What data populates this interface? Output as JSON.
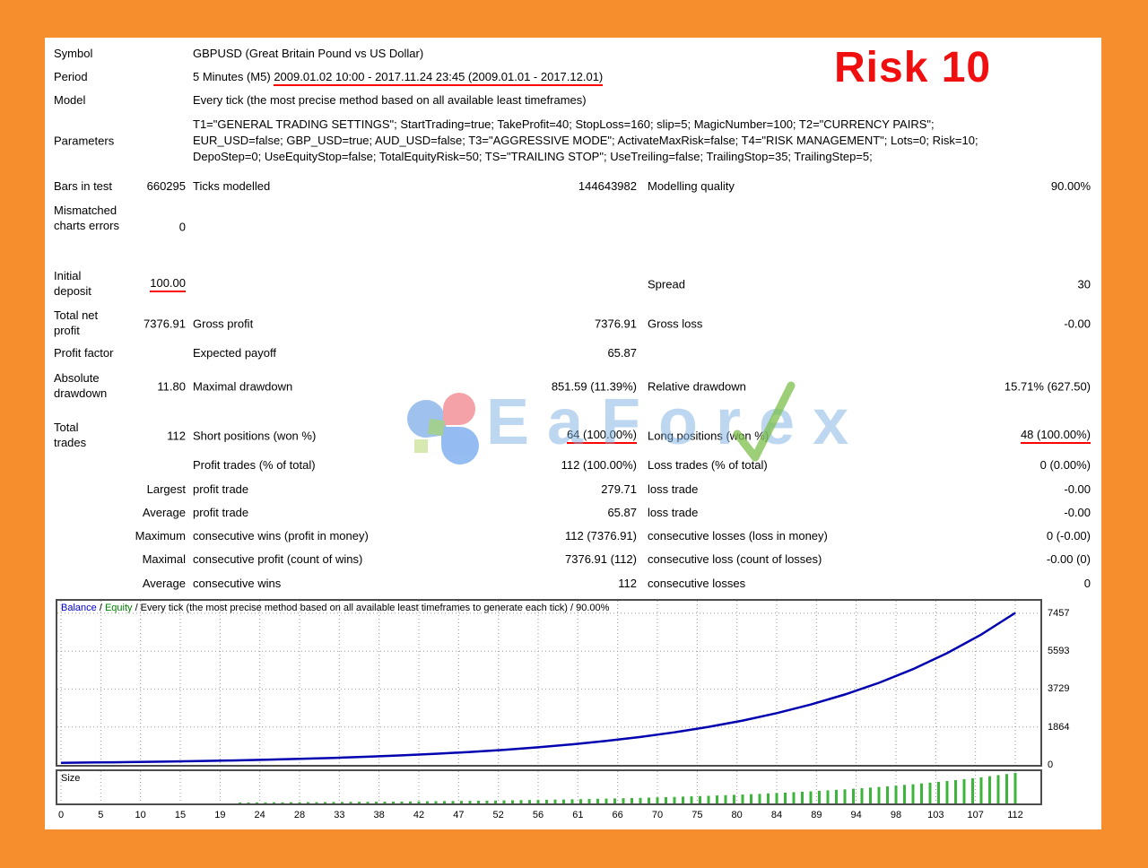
{
  "annotation": {
    "risk_label": "Risk 10"
  },
  "watermark": {
    "brand": "EaForex"
  },
  "report": {
    "symbol": {
      "label": "Symbol",
      "value": "GBPUSD (Great Britain Pound vs US Dollar)"
    },
    "period": {
      "label": "Period",
      "prefix": "5 Minutes (M5) ",
      "underlined": "2009.01.02 10:00 - 2017.11.24 23:45 (2009.01.01 - 2017.12.01)"
    },
    "model": {
      "label": "Model",
      "value": "Every tick (the most precise method based on all available least timeframes)"
    },
    "parameters": {
      "label": "Parameters",
      "lines": [
        "T1=\"GENERAL TRADING SETTINGS\"; StartTrading=true; TakeProfit=40; StopLoss=160; slip=5; MagicNumber=100; T2=\"CURRENCY PAIRS\";",
        "EUR_USD=false; GBP_USD=true; AUD_USD=false; T3=\"AGGRESSIVE MODE\"; ActivateMaxRisk=false; T4=\"RISK MANAGEMENT\"; Lots=0; Risk=10;",
        "DepoStep=0; UseEquityStop=false; TotalEquityRisk=50; TS=\"TRAILING STOP\"; UseTreiling=false; TrailingStop=35; TrailingStep=5;"
      ]
    },
    "bars": {
      "label": "Bars in test",
      "value": "660295",
      "l2": "Ticks modelled",
      "v2": "144643982",
      "l3": "Modelling quality",
      "v3": "90.00%"
    },
    "mismatched": {
      "label": "Mismatched charts errors",
      "value": "0"
    },
    "initial_deposit": {
      "label": "Initial deposit",
      "value": "100.00",
      "l3": "Spread",
      "v3": "30"
    },
    "total_net_profit": {
      "label": "Total net profit",
      "value": "7376.91",
      "l2": "Gross profit",
      "v2": "7376.91",
      "l3": "Gross loss",
      "v3": "-0.00"
    },
    "profit_factor": {
      "label": "Profit factor",
      "l2": "Expected payoff",
      "v2": "65.87"
    },
    "absolute_drawdown": {
      "label": "Absolute drawdown",
      "value": "11.80",
      "l2": "Maximal drawdown",
      "v2": "851.59 (11.39%)",
      "l3": "Relative drawdown",
      "v3": "15.71% (627.50)"
    },
    "total_trades": {
      "label": "Total trades",
      "value": "112",
      "l2": "Short positions (won %)",
      "v2": "64 (100.00%)",
      "l3": "Long positions (won %)",
      "v3": "48 (100.00%)"
    },
    "profit_trades": {
      "l2": "Profit trades (% of total)",
      "v2": "112 (100.00%)",
      "l3": "Loss trades (% of total)",
      "v3": "0 (0.00%)"
    },
    "largest": {
      "label": "Largest",
      "l2": "profit trade",
      "v2": "279.71",
      "l3": "loss trade",
      "v3": "-0.00"
    },
    "average_trade": {
      "label": "Average",
      "l2": "profit trade",
      "v2": "65.87",
      "l3": "loss trade",
      "v3": "-0.00"
    },
    "maximum": {
      "label": "Maximum",
      "l2": "consecutive wins (profit in money)",
      "v2": "112 (7376.91)",
      "l3": "consecutive losses (loss in money)",
      "v3": "0 (-0.00)"
    },
    "maximal": {
      "label": "Maximal",
      "l2": "consecutive profit (count of wins)",
      "v2": "7376.91 (112)",
      "l3": "consecutive loss (count of losses)",
      "v3": "-0.00 (0)"
    },
    "average_cons": {
      "label": "Average",
      "l2": "consecutive wins",
      "v2": "112",
      "l3": "consecutive losses",
      "v3": "0"
    }
  },
  "chart_data": {
    "type": "line",
    "header": {
      "balance_label": "Balance",
      "sep1": " / ",
      "equity_label": "Equity",
      "rest": " / Every tick (the most precise method based on all available least timeframes to generate each tick) / 90.00%"
    },
    "line_color": "#0000b0",
    "balance_label_color": "#0000cc",
    "equity_label_color": "#008000",
    "x": [
      0,
      4,
      8,
      12,
      16,
      20,
      24,
      28,
      32,
      36,
      40,
      44,
      48,
      52,
      56,
      60,
      64,
      68,
      72,
      76,
      80,
      84,
      88,
      92,
      96,
      100,
      104,
      108,
      112
    ],
    "series": [
      {
        "name": "Balance",
        "values": [
          100,
          117,
          136,
          159,
          185,
          216,
          252,
          294,
          343,
          400,
          467,
          545,
          635,
          741,
          865,
          1009,
          1177,
          1373,
          1602,
          1869,
          2180,
          2543,
          2967,
          3461,
          4037,
          4710,
          5495,
          6410,
          7477
        ]
      }
    ],
    "y_ticks": [
      0,
      1864,
      3729,
      5593,
      7457
    ],
    "x_ticks": [
      "0",
      "5",
      "10",
      "15",
      "19",
      "24",
      "28",
      "33",
      "38",
      "42",
      "47",
      "52",
      "56",
      "61",
      "66",
      "70",
      "75",
      "80",
      "84",
      "89",
      "94",
      "98",
      "103",
      "107",
      "112"
    ],
    "ylim": [
      0,
      8071
    ],
    "trades_total": 112,
    "size_pane": {
      "label": "Size",
      "bar_color": "#3db53d",
      "max_bar_value": 7477
    }
  }
}
